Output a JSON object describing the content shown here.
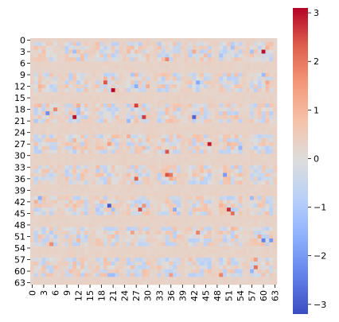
{
  "chart_data": {
    "type": "heatmap",
    "title": "",
    "xlabel": "",
    "ylabel": "",
    "rows": 64,
    "cols": 64,
    "x_tick_labels": [
      "0",
      "3",
      "6",
      "9",
      "12",
      "15",
      "18",
      "21",
      "24",
      "27",
      "30",
      "33",
      "36",
      "39",
      "42",
      "45",
      "48",
      "51",
      "54",
      "57",
      "60",
      "63"
    ],
    "y_tick_labels": [
      "0",
      "3",
      "6",
      "9",
      "12",
      "15",
      "18",
      "21",
      "24",
      "27",
      "30",
      "33",
      "36",
      "39",
      "42",
      "45",
      "48",
      "51",
      "54",
      "57",
      "60",
      "63"
    ],
    "colormap": "coolwarm",
    "colorbar": {
      "min": -3.2,
      "max": 3.1,
      "tick_values": [
        -3,
        -2,
        -1,
        0,
        1,
        2,
        3
      ],
      "tick_labels": [
        "−3",
        "−2",
        "−1",
        "0",
        "1",
        "2",
        "3"
      ]
    },
    "cell_pattern": {
      "description_values": "approximate 64x64 grid; rows with index mod 8 in {0,6,7} are ~0.3 background; other rows vary in range -3.2..3.1",
      "background_value": 0.3,
      "noise_amplitude": 0.6,
      "hotspots": [
        {
          "row": 3,
          "col": 60,
          "value": 3.0
        },
        {
          "row": 11,
          "col": 19,
          "value": 2.4
        },
        {
          "row": 13,
          "col": 21,
          "value": 3.1
        },
        {
          "row": 20,
          "col": 11,
          "value": 3.0
        },
        {
          "row": 17,
          "col": 27,
          "value": 2.6
        },
        {
          "row": 20,
          "col": 29,
          "value": 2.6
        },
        {
          "row": 20,
          "col": 42,
          "value": -2.8
        },
        {
          "row": 27,
          "col": 46,
          "value": 2.9
        },
        {
          "row": 29,
          "col": 35,
          "value": 2.4
        },
        {
          "row": 36,
          "col": 27,
          "value": 2.3
        },
        {
          "row": 35,
          "col": 35,
          "value": 2.4
        },
        {
          "row": 43,
          "col": 20,
          "value": -3.0
        },
        {
          "row": 44,
          "col": 28,
          "value": 2.4
        },
        {
          "row": 44,
          "col": 51,
          "value": 2.7
        },
        {
          "row": 45,
          "col": 52,
          "value": 2.1
        },
        {
          "row": 52,
          "col": 60,
          "value": -2.4
        },
        {
          "row": 52,
          "col": 62,
          "value": -2.0
        },
        {
          "row": 59,
          "col": 58,
          "value": 2.1
        },
        {
          "row": 19,
          "col": 4,
          "value": -2.2
        },
        {
          "row": 35,
          "col": 50,
          "value": -2.0
        }
      ]
    }
  },
  "colors": {
    "coolwarm_stops": [
      "#3b4cc0",
      "#6282ea",
      "#8db0fe",
      "#b8d0f9",
      "#dcdddd",
      "#f5c4ac",
      "#f49a7b",
      "#de604d",
      "#b40426"
    ]
  }
}
